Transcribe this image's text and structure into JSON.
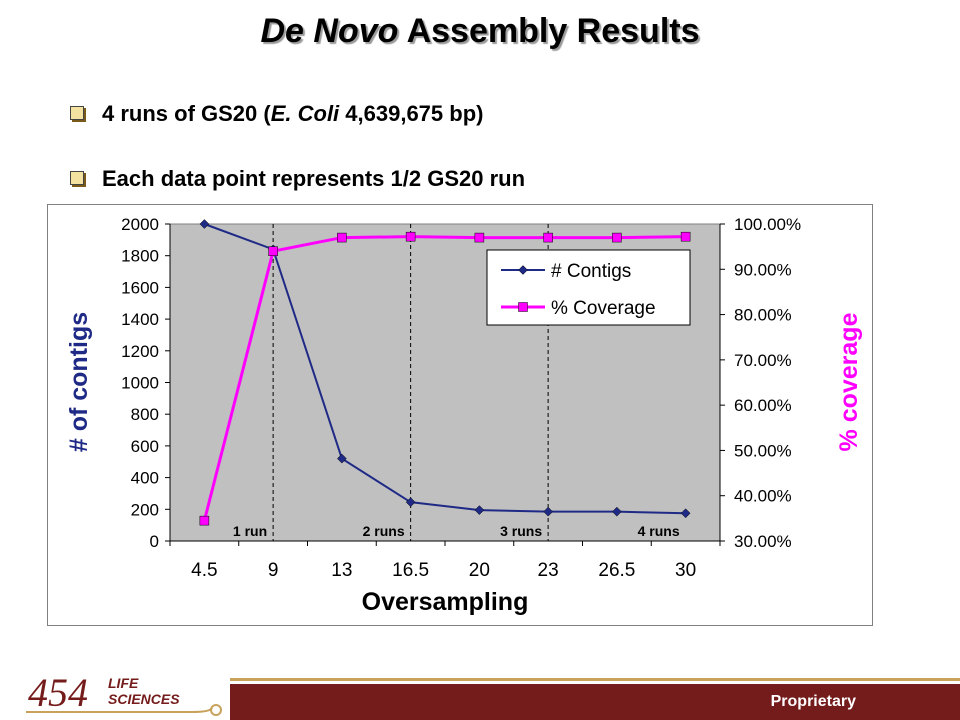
{
  "slide": {
    "title_italic": "De Novo",
    "title_rest": " Assembly Results",
    "bullet1_pre": "4 runs of GS20 (",
    "bullet1_italic": "E. Coli",
    "bullet1_post": "  4,639,675 bp)",
    "bullet2": "Each data point represents 1/2 GS20 run",
    "footer_label": "Proprietary",
    "logo_number": "454",
    "logo_line1": "LIFE",
    "logo_line2": "SCIENCES"
  },
  "colors": {
    "contigs": "#1f2a86",
    "coverage": "#ff00ff",
    "plot_bg": "#c0c0c0",
    "footer": "#741b1b"
  },
  "chart_data": {
    "type": "line",
    "xlabel": "Oversampling",
    "ylabel": "# of contigs",
    "y2label": "% coverage",
    "categories": [
      "4.5",
      "9",
      "13",
      "16.5",
      "20",
      "23",
      "26.5",
      "30"
    ],
    "ylim": [
      0,
      2000
    ],
    "yticks": [
      "0",
      "200",
      "400",
      "600",
      "800",
      "1000",
      "1200",
      "1400",
      "1600",
      "1800",
      "2000"
    ],
    "y2lim": [
      0.3,
      1.0
    ],
    "y2ticks": [
      "30.00%",
      "40.00%",
      "50.00%",
      "60.00%",
      "70.00%",
      "80.00%",
      "90.00%",
      "100.00%"
    ],
    "series": [
      {
        "name": "# Contigs",
        "axis": "left",
        "values": [
          2000,
          1840,
          520,
          245,
          195,
          185,
          185,
          175
        ]
      },
      {
        "name": "% Coverage",
        "axis": "right",
        "values": [
          0.345,
          0.94,
          0.97,
          0.972,
          0.97,
          0.97,
          0.97,
          0.972
        ]
      }
    ],
    "run_markers": [
      {
        "label": "1 run",
        "after_index": 1
      },
      {
        "label": "2 runs",
        "after_index": 3
      },
      {
        "label": "3 runs",
        "after_index": 5
      },
      {
        "label": "4 runs",
        "after_index": 7
      }
    ],
    "legend_position": "top-right"
  }
}
